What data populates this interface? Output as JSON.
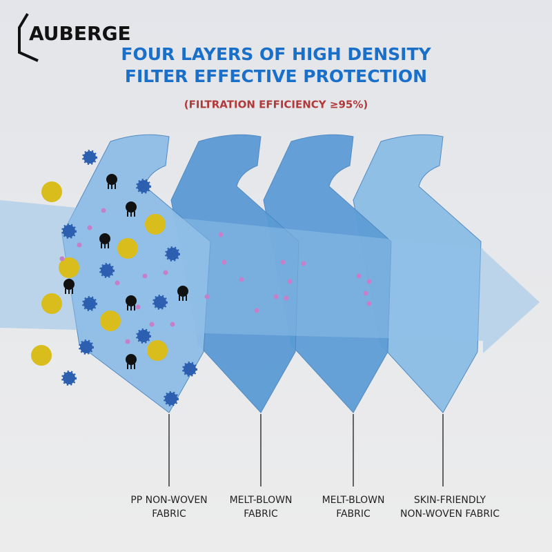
{
  "brand": "AUBERGE",
  "header": {
    "title_lines": [
      "FOUR LAYERS OF HIGH DENSITY",
      "FILTER EFFECTIVE PROTECTION"
    ],
    "subtitle": "(FILTRATION EFFICIENCY ≥95%)"
  },
  "layers": [
    {
      "label_lines": [
        "PP NON-WOVEN",
        "FABRIC"
      ]
    },
    {
      "label_lines": [
        "MELT-BLOWN",
        "FABRIC"
      ]
    },
    {
      "label_lines": [
        "MELT-BLOWN",
        "FABRIC"
      ]
    },
    {
      "label_lines": [
        "SKIN-FRIENDLY",
        "NON-WOVEN FABRIC"
      ]
    }
  ]
}
